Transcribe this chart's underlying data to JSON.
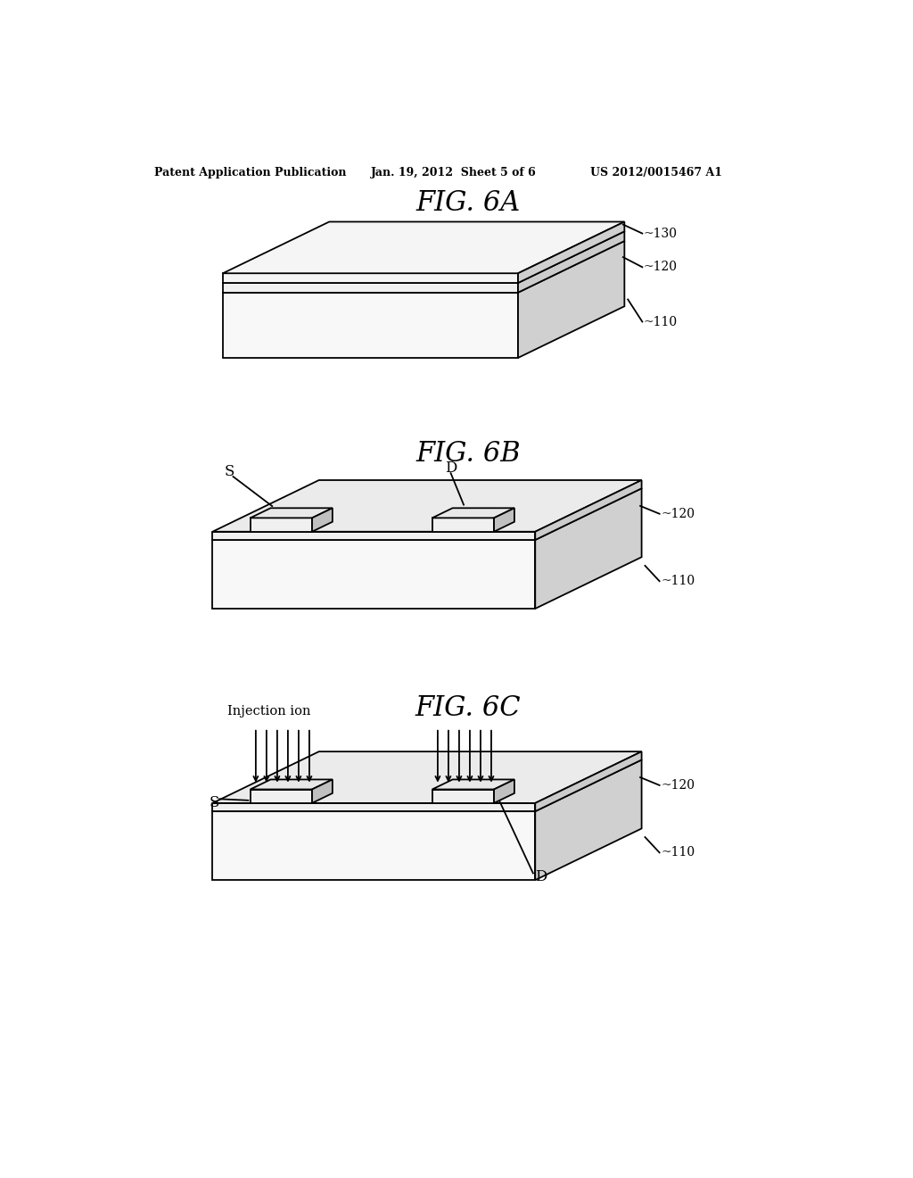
{
  "bg_color": "#ffffff",
  "header_left": "Patent Application Publication",
  "header_mid": "Jan. 19, 2012  Sheet 5 of 6",
  "header_right": "US 2012/0015467 A1",
  "fig_titles": [
    "FIG. 6A",
    "FIG. 6B",
    "FIG. 6C"
  ],
  "label_injection": "Injection ion",
  "line_color": "#000000",
  "fill_white": "#ffffff",
  "fill_light": "#f5f5f5",
  "fill_mid": "#e0e0e0",
  "fill_dark": "#c8c8c8"
}
